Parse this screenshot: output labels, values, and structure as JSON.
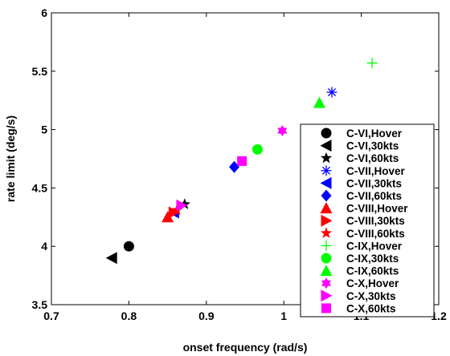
{
  "chart_data": {
    "type": "scatter",
    "title": "",
    "xlabel": "onset frequency (rad/s)",
    "ylabel": "rate limit (deg/s)",
    "xlim": [
      0.7,
      1.2
    ],
    "ylim": [
      3.5,
      6
    ],
    "xticks": [
      "0.7",
      "0.8",
      "0.9",
      "1",
      "1.1",
      "1.2"
    ],
    "yticks": [
      "3.5",
      "4",
      "4.5",
      "5",
      "5.5",
      "6"
    ],
    "grid": false,
    "legend_position": "lower-right",
    "series": [
      {
        "name": "C-VI,Hover",
        "marker": "circle",
        "color": "#000000",
        "x": [
          0.8
        ],
        "y": [
          4.0
        ]
      },
      {
        "name": "C-VI,30kts",
        "marker": "triangle-left",
        "color": "#000000",
        "x": [
          0.778
        ],
        "y": [
          3.9
        ]
      },
      {
        "name": "C-VI,60kts",
        "marker": "star",
        "color": "#000000",
        "x": [
          0.872
        ],
        "y": [
          4.36
        ]
      },
      {
        "name": "C-VII,Hover",
        "marker": "asterisk",
        "color": "#0000ff",
        "x": [
          1.062
        ],
        "y": [
          5.32
        ]
      },
      {
        "name": "C-VII,30kts",
        "marker": "triangle-left",
        "color": "#0000ff",
        "x": [
          0.858
        ],
        "y": [
          4.29
        ]
      },
      {
        "name": "C-VII,60kts",
        "marker": "diamond",
        "color": "#0000ff",
        "x": [
          0.936
        ],
        "y": [
          4.68
        ]
      },
      {
        "name": "C-VIII,Hover",
        "marker": "triangle-up",
        "color": "#ff0000",
        "x": [
          0.85
        ],
        "y": [
          4.25
        ]
      },
      {
        "name": "C-VIII,30kts",
        "marker": "triangle-right",
        "color": "#ff0000",
        "x": [
          0.858
        ],
        "y": [
          4.29
        ]
      },
      {
        "name": "C-VIII,60kts",
        "marker": "star",
        "color": "#ff0000",
        "x": [
          0.862
        ],
        "y": [
          4.31
        ]
      },
      {
        "name": "C-IX,Hover",
        "marker": "plus",
        "color": "#00ff00",
        "x": [
          1.114
        ],
        "y": [
          5.57
        ]
      },
      {
        "name": "C-IX,30kts",
        "marker": "circle",
        "color": "#00ff00",
        "x": [
          0.966
        ],
        "y": [
          4.83
        ]
      },
      {
        "name": "C-IX,60kts",
        "marker": "triangle-up",
        "color": "#00ff00",
        "x": [
          1.046
        ],
        "y": [
          5.23
        ]
      },
      {
        "name": "C-X,Hover",
        "marker": "hexagram",
        "color": "#ff00ff",
        "x": [
          0.998
        ],
        "y": [
          4.99
        ]
      },
      {
        "name": "C-X,30kts",
        "marker": "triangle-right",
        "color": "#ff00ff",
        "x": [
          0.868
        ],
        "y": [
          4.35
        ]
      },
      {
        "name": "C-X,60kts",
        "marker": "square",
        "color": "#ff00ff",
        "x": [
          0.946
        ],
        "y": [
          4.73
        ]
      }
    ]
  }
}
